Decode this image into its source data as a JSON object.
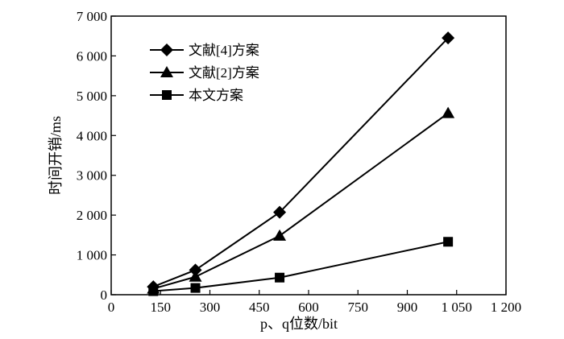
{
  "chart_data": {
    "type": "line",
    "title": "",
    "xlabel": "p、q位数/bit",
    "ylabel": "时间开销/ms",
    "xlim": [
      0,
      1200
    ],
    "ylim": [
      0,
      7000
    ],
    "x_ticks": [
      0,
      150,
      300,
      450,
      600,
      750,
      900,
      1050,
      1200
    ],
    "x_tick_labels": [
      "0",
      "150",
      "300",
      "450",
      "600",
      "750",
      "900",
      "1 050",
      "1 200"
    ],
    "y_ticks": [
      0,
      1000,
      2000,
      3000,
      4000,
      5000,
      6000,
      7000
    ],
    "y_tick_labels": [
      "0",
      "1 000",
      "2 000",
      "3 000",
      "4 000",
      "5 000",
      "6 000",
      "7 000"
    ],
    "legend_position": "top-left",
    "grid": false,
    "x": [
      128,
      256,
      512,
      1024
    ],
    "series": [
      {
        "name": "文献[4]方案",
        "marker": "diamond",
        "values": [
          200,
          620,
          2070,
          6450
        ]
      },
      {
        "name": "文献[2]方案",
        "marker": "triangle",
        "values": [
          150,
          450,
          1480,
          4560
        ]
      },
      {
        "name": "本文方案",
        "marker": "square",
        "values": [
          90,
          170,
          430,
          1330
        ]
      }
    ]
  },
  "colors": {
    "line": "#000000",
    "background": "#ffffff"
  }
}
